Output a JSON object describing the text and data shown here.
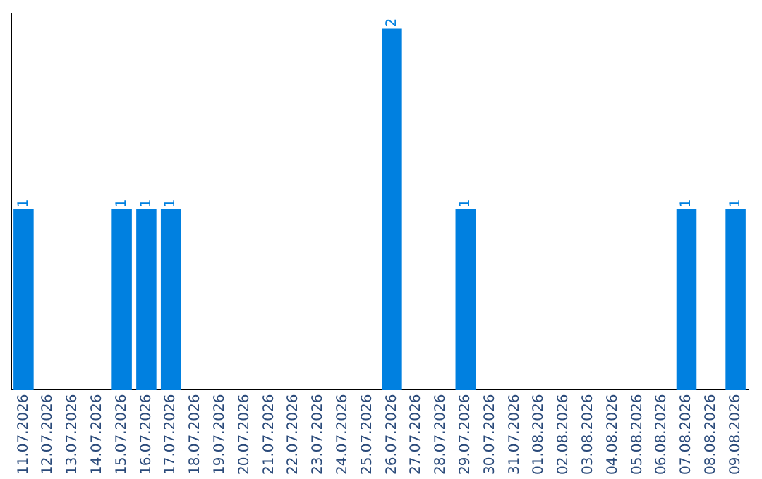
{
  "chart_data": {
    "type": "bar",
    "categories": [
      "11.07.2026",
      "12.07.2026",
      "13.07.2026",
      "14.07.2026",
      "15.07.2026",
      "16.07.2026",
      "17.07.2026",
      "18.07.2026",
      "19.07.2026",
      "20.07.2026",
      "21.07.2026",
      "22.07.2026",
      "23.07.2026",
      "24.07.2026",
      "25.07.2026",
      "26.07.2026",
      "27.07.2026",
      "28.07.2026",
      "29.07.2026",
      "30.07.2026",
      "31.07.2026",
      "01.08.2026",
      "02.08.2026",
      "03.08.2026",
      "04.08.2026",
      "05.08.2026",
      "06.08.2026",
      "07.08.2026",
      "08.08.2026",
      "09.08.2026"
    ],
    "values": [
      1,
      0,
      0,
      0,
      1,
      1,
      1,
      0,
      0,
      0,
      0,
      0,
      0,
      0,
      0,
      2,
      0,
      0,
      1,
      0,
      0,
      0,
      0,
      0,
      0,
      0,
      0,
      1,
      0,
      1
    ],
    "value_labels": [
      "1",
      null,
      null,
      null,
      "1",
      "1",
      "1",
      null,
      null,
      null,
      null,
      null,
      null,
      null,
      null,
      "2",
      null,
      null,
      "1",
      null,
      null,
      null,
      null,
      null,
      null,
      null,
      null,
      "1",
      null,
      "1"
    ],
    "color": "#0080e0",
    "grid": false,
    "legend": false,
    "tick_labels": "x"
  }
}
